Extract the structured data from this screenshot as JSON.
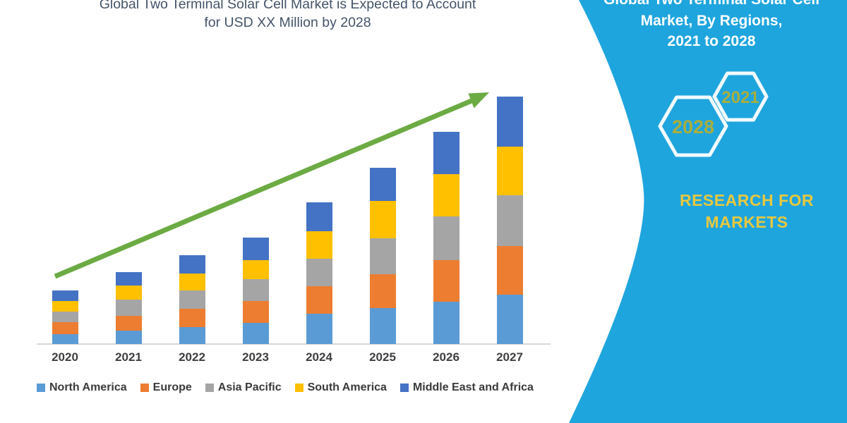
{
  "chart": {
    "title_line1": "Global Two Terminal Solar Cell Market is Expected to Account",
    "title_line2": "for USD XX Million by 2028"
  },
  "panel": {
    "title_line1": "Global Two Terminal Solar Cell",
    "title_line2": "Market, By Regions,",
    "title_line3": "2021 to 2028",
    "hexagons": [
      {
        "year": "2028"
      },
      {
        "year": "2021"
      }
    ],
    "brand_line1": "RESEARCH FOR",
    "brand_line2": "MARKETS"
  },
  "colors": {
    "panel_background": "#1FA5DE",
    "hexagon_outline": "#F2FAFD",
    "hexagon_year_text": "#A9AE3C",
    "brand_text": "#E7C83F",
    "trend_arrow": "#6CAB44",
    "chart_title_text": "#44546A",
    "axis_line": "#D9D9D9",
    "axis_label_text": "#3F3F3F",
    "legend_text": "#3A3A3A"
  },
  "chart_data": {
    "type": "bar",
    "stacked": true,
    "title": "Global Two Terminal Solar Cell Market is Expected to Account for USD XX Million by 2028",
    "xlabel": "",
    "ylabel": "",
    "y_axis_shown": false,
    "note": "No y-axis scale is shown in the figure; values are relative stacked-segment heights",
    "legend_position": "bottom",
    "categories": [
      "2020",
      "2021",
      "2022",
      "2023",
      "2024",
      "2025",
      "2026",
      "2027"
    ],
    "series": [
      {
        "name": "North America",
        "color": "#5B9BD5",
        "values": [
          14,
          19,
          24,
          30,
          43,
          51,
          60,
          70
        ]
      },
      {
        "name": "Europe",
        "color": "#ED7D31",
        "values": [
          17,
          21,
          26,
          31,
          39,
          48,
          59,
          69
        ]
      },
      {
        "name": "Asia Pacific",
        "color": "#A5A5A5",
        "values": [
          15,
          23,
          26,
          31,
          39,
          51,
          62,
          72
        ]
      },
      {
        "name": "South America",
        "color": "#FFC000",
        "values": [
          15,
          20,
          24,
          27,
          39,
          53,
          60,
          69
        ]
      },
      {
        "name": "Middle East and Africa",
        "color": "#4472C4",
        "values": [
          15,
          19,
          26,
          32,
          41,
          47,
          60,
          71
        ]
      }
    ],
    "totals": [
      76,
      102,
      126,
      151,
      201,
      250,
      301,
      351
    ],
    "annotations": [
      "upward green trend arrow from 2020 toward 2027"
    ]
  }
}
